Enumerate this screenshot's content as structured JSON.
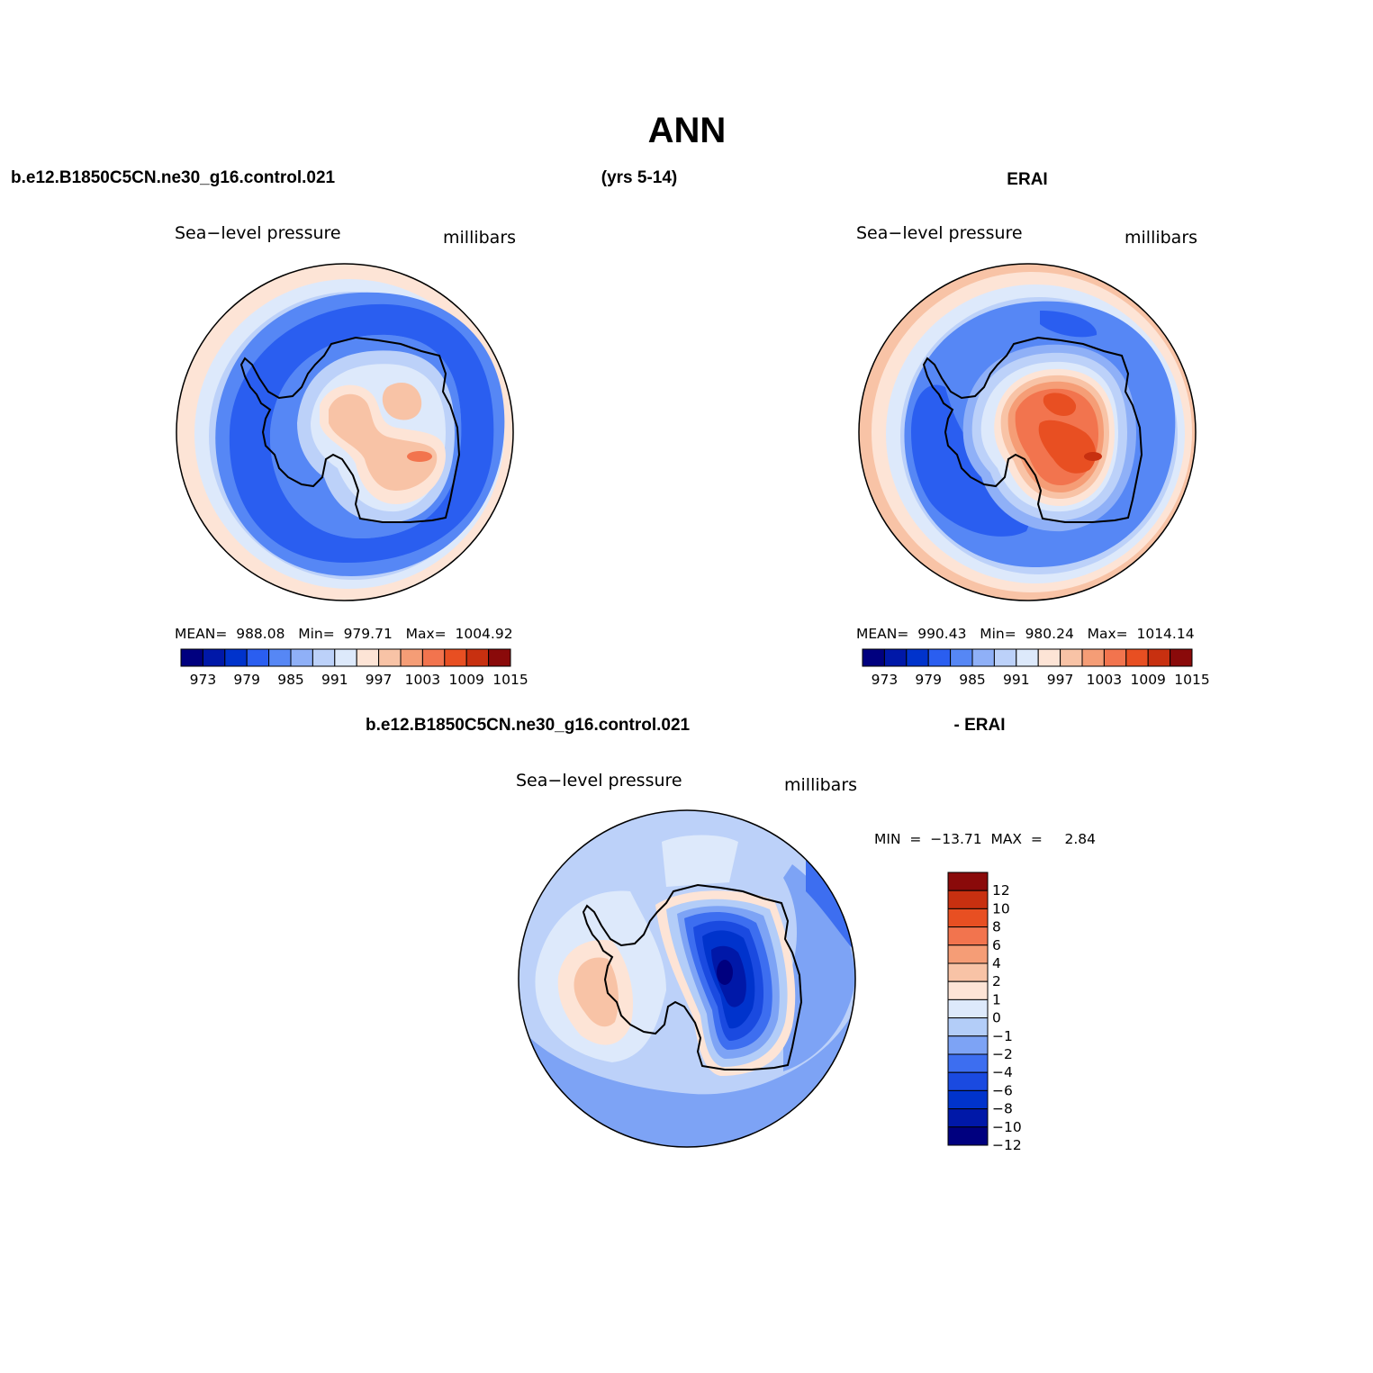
{
  "title": "ANN",
  "header": {
    "case_name": "b.e12.B1850C5CN.ne30_g16.control.021",
    "years": "(yrs 5-14)",
    "obs_name": "ERAI",
    "diff_case": "b.e12.B1850C5CN.ne30_g16.control.021",
    "diff_obs": "- ERAI"
  },
  "colors": {
    "abs_scale": [
      "#00007f",
      "#0018a8",
      "#0033cc",
      "#2a5ef0",
      "#5687f5",
      "#8fb0f7",
      "#bcd1f9",
      "#dde9fb",
      "#fde4d6",
      "#f8c3a6",
      "#f59d76",
      "#f2744e",
      "#e84f22",
      "#c83010",
      "#8a0a0a"
    ],
    "diff_scale": [
      "#00007f",
      "#0018a8",
      "#0033cc",
      "#1a4ae0",
      "#3d6ef0",
      "#7da3f5",
      "#b3cdf8",
      "#dde9fb",
      "#fde4d6",
      "#f8c3a6",
      "#f59d76",
      "#f2744e",
      "#e84f22",
      "#c83010",
      "#8a0a0a"
    ],
    "coastline": "#000000"
  },
  "chart_data": [
    {
      "type": "heatmap",
      "name": "model",
      "field": "Sea−level pressure",
      "units": "millibars",
      "stats": "MEAN=  988.08   Min=  979.71   Max=  1004.92",
      "mean": 988.08,
      "min": 979.71,
      "max": 1004.92,
      "levels": [
        973,
        976,
        979,
        982,
        985,
        988,
        991,
        994,
        997,
        1000,
        1003,
        1006,
        1009,
        1012,
        1015
      ],
      "tick_labels": [
        "973",
        "979",
        "985",
        "991",
        "997",
        "1003",
        "1009",
        "1015"
      ]
    },
    {
      "type": "heatmap",
      "name": "obs",
      "field": "Sea−level pressure",
      "units": "millibars",
      "stats": "MEAN=  990.43   Min=  980.24   Max=  1014.14",
      "mean": 990.43,
      "min": 980.24,
      "max": 1014.14,
      "levels": [
        973,
        976,
        979,
        982,
        985,
        988,
        991,
        994,
        997,
        1000,
        1003,
        1006,
        1009,
        1012,
        1015
      ],
      "tick_labels": [
        "973",
        "979",
        "985",
        "991",
        "997",
        "1003",
        "1009",
        "1015"
      ]
    },
    {
      "type": "heatmap",
      "name": "difference",
      "field": "Sea−level pressure",
      "units": "millibars",
      "stats": "MIN  =  −13.71  MAX  =     2.84",
      "min": -13.71,
      "max": 2.84,
      "levels": [
        -12,
        -10,
        -8,
        -6,
        -4,
        -2,
        -1,
        0,
        1,
        2,
        4,
        6,
        8,
        10,
        12
      ],
      "tick_labels": [
        "12",
        "10",
        "8",
        "6",
        "4",
        "2",
        "1",
        "0",
        "−1",
        "−2",
        "−4",
        "−6",
        "−8",
        "−10",
        "−12"
      ]
    }
  ]
}
